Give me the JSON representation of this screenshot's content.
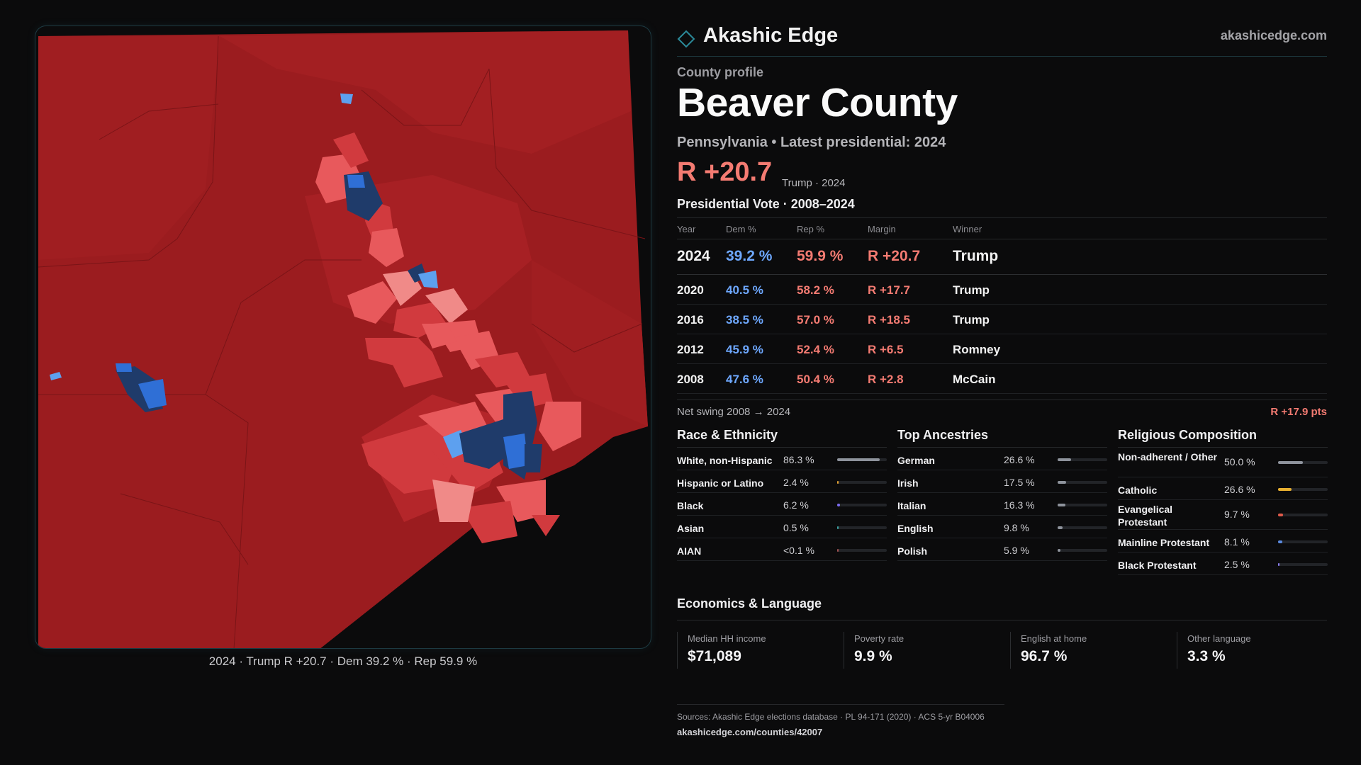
{
  "brand": {
    "name": "Akashic Edge",
    "url": "akashicedge.com",
    "accent": "#2b8a9a"
  },
  "profile": {
    "kicker": "County profile",
    "title": "Beaver County",
    "subtitle": "Pennsylvania • Latest presidential: 2024",
    "margin": "R +20.7",
    "margin_note": "Trump · 2024"
  },
  "vote": {
    "section_title": "Presidential Vote · 2008–2024",
    "headers": {
      "year": "Year",
      "dem": "Dem %",
      "rep": "Rep %",
      "margin": "Margin",
      "winner": "Winner"
    },
    "rows": [
      {
        "year": "2024",
        "dem": "39.2 %",
        "rep": "59.9 %",
        "margin": "R +20.7",
        "winner": "Trump"
      },
      {
        "year": "2020",
        "dem": "40.5 %",
        "rep": "58.2 %",
        "margin": "R +17.7",
        "winner": "Trump"
      },
      {
        "year": "2016",
        "dem": "38.5 %",
        "rep": "57.0 %",
        "margin": "R +18.5",
        "winner": "Trump"
      },
      {
        "year": "2012",
        "dem": "45.9 %",
        "rep": "52.4 %",
        "margin": "R +6.5",
        "winner": "Romney"
      },
      {
        "year": "2008",
        "dem": "47.6 %",
        "rep": "50.4 %",
        "margin": "R +2.8",
        "winner": "McCain"
      }
    ],
    "swing_label": "Net swing 2008 → 2024",
    "swing_value": "R +17.9 pts"
  },
  "race": {
    "title": "Race & Ethnicity",
    "rows": [
      {
        "label": "White, non-Hispanic",
        "value": "86.3 %",
        "share": 0.863,
        "color": "#8e939c"
      },
      {
        "label": "Hispanic or Latino",
        "value": "2.4 %",
        "share": 0.024,
        "color": "#e0a030"
      },
      {
        "label": "Black",
        "value": "6.2 %",
        "share": 0.062,
        "color": "#7c6cf0"
      },
      {
        "label": "Asian",
        "value": "0.5 %",
        "share": 0.005,
        "color": "#3aa0a0"
      },
      {
        "label": "AIAN",
        "value": "<0.1 %",
        "share": 0.001,
        "color": "#a05050"
      }
    ]
  },
  "ancestry": {
    "title": "Top Ancestries",
    "rows": [
      {
        "label": "German",
        "value": "26.6 %",
        "share": 0.266,
        "color": "#8e939c"
      },
      {
        "label": "Irish",
        "value": "17.5 %",
        "share": 0.175,
        "color": "#8e939c"
      },
      {
        "label": "Italian",
        "value": "16.3 %",
        "share": 0.163,
        "color": "#8e939c"
      },
      {
        "label": "English",
        "value": "9.8 %",
        "share": 0.098,
        "color": "#8e939c"
      },
      {
        "label": "Polish",
        "value": "5.9 %",
        "share": 0.059,
        "color": "#8e939c"
      }
    ]
  },
  "religion": {
    "title": "Religious Composition",
    "rows": [
      {
        "label": "Non-adherent / Other",
        "value": "50.0 %",
        "share": 0.5,
        "color": "#8e939c",
        "tall": true
      },
      {
        "label": "Catholic",
        "value": "26.6 %",
        "share": 0.266,
        "color": "#e8b030",
        "tall": false
      },
      {
        "label": "Evangelical Protestant",
        "value": "9.7 %",
        "share": 0.097,
        "color": "#e05a4a",
        "tall": true
      },
      {
        "label": "Mainline Protestant",
        "value": "8.1 %",
        "share": 0.081,
        "color": "#5a8ae0",
        "tall": false
      },
      {
        "label": "Black Protestant",
        "value": "2.5 %",
        "share": 0.025,
        "color": "#8a7cf0",
        "tall": false
      }
    ]
  },
  "economics": {
    "title": "Economics & Language",
    "items": [
      {
        "label": "Median HH income",
        "value": "$71,089"
      },
      {
        "label": "Poverty rate",
        "value": "9.9 %"
      },
      {
        "label": "English at home",
        "value": "96.7 %"
      },
      {
        "label": "Other language",
        "value": "3.3 %"
      }
    ]
  },
  "map": {
    "caption": "2024 · Trump R +20.7 · Dem 39.2 % · Rep 59.9 %",
    "colors": {
      "base": "#9b1c1f",
      "r2": "#b4262a",
      "r3": "#d13a3e",
      "r4": "#e8595c",
      "r5": "#f08a88",
      "d1": "#5da0ef",
      "d2": "#2f6fd6",
      "d3": "#1f3b6a"
    }
  },
  "sources": {
    "line": "Sources: Akashic Edge elections database · PL 94-171 (2020) · ACS 5-yr B04006",
    "link": "akashicedge.com/counties/42007"
  }
}
